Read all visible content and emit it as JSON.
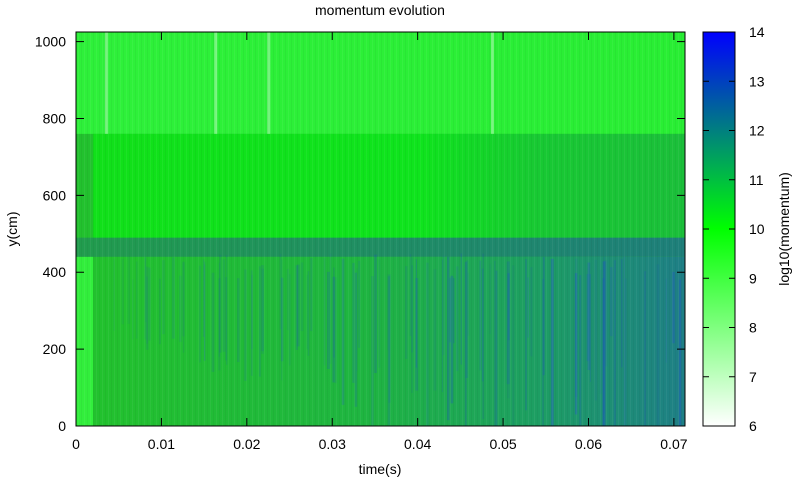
{
  "chart_data": {
    "type": "heatmap",
    "title": "momentum evolution",
    "xlabel": "time(s)",
    "ylabel": "y(cm)",
    "colorbar_label": "log10(momentum)",
    "xlim": [
      0,
      0.0713
    ],
    "ylim": [
      0,
      1025
    ],
    "x_ticks": [
      0,
      0.01,
      0.02,
      0.03,
      0.04,
      0.05,
      0.06,
      0.07
    ],
    "x_tick_labels": [
      "0",
      "0.01",
      "0.02",
      "0.03",
      "0.04",
      "0.05",
      "0.06",
      "0.07"
    ],
    "y_ticks": [
      0,
      200,
      400,
      600,
      800,
      1000
    ],
    "y_tick_labels": [
      "0",
      "200",
      "400",
      "600",
      "800",
      "1000"
    ],
    "color_range": [
      6,
      14
    ],
    "color_ticks": [
      6,
      7,
      8,
      9,
      10,
      11,
      12,
      13,
      14
    ],
    "color_tick_labels": [
      "6",
      "7",
      "8",
      "9",
      "10",
      "11",
      "12",
      "13",
      "14"
    ],
    "colormap": [
      "#ffffff",
      "#00ff00",
      "#0000ff"
    ],
    "grid": false,
    "regions": [
      {
        "name": "upper",
        "y_range": [
          760,
          1025
        ],
        "x_range": [
          0,
          0.0713
        ],
        "log10_momentum": 9.2
      },
      {
        "name": "middle",
        "y_range": [
          470,
          760
        ],
        "x_range": [
          0.002,
          0.0713
        ],
        "log10_momentum": 10.0
      },
      {
        "name": "band",
        "y_range": [
          440,
          490
        ],
        "x_range": [
          0,
          0.0713
        ],
        "log10_momentum": 11.5
      },
      {
        "name": "lower",
        "y_range": [
          0,
          440
        ],
        "x_range": [
          0.003,
          0.0713
        ],
        "log10_momentum": 11.2
      },
      {
        "name": "early-column",
        "y_range": [
          0,
          440
        ],
        "x_range": [
          0,
          0.002
        ],
        "log10_momentum": 9.0
      }
    ]
  }
}
